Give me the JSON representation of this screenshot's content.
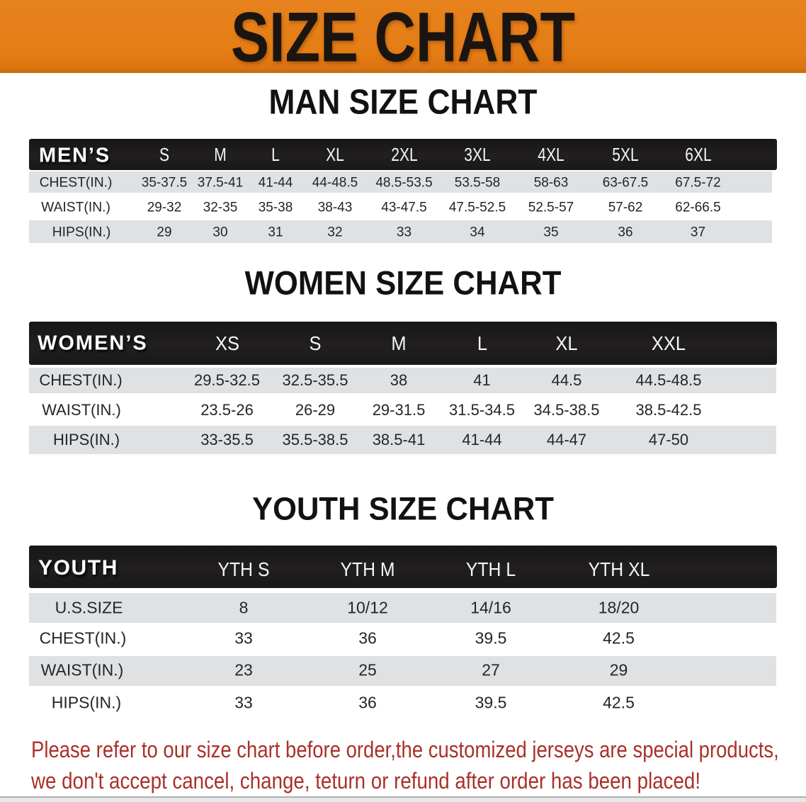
{
  "banner": {
    "title": "SIZE CHART",
    "background_color": "#e67e18",
    "text_color": "#1b1511"
  },
  "sections": [
    {
      "id": "men",
      "heading": "MAN SIZE CHART",
      "table": {
        "corner_label": "MEN’S",
        "columns": [
          "S",
          "M",
          "L",
          "XL",
          "2XL",
          "3XL",
          "4XL",
          "5XL",
          "6XL"
        ],
        "rows": [
          {
            "label": "CHEST(IN.)",
            "values": [
              "35-37.5",
              "37.5-41",
              "41-44",
              "44-48.5",
              "48.5-53.5",
              "53.5-58",
              "58-63",
              "63-67.5",
              "67.5-72"
            ]
          },
          {
            "label": "WAIST(IN.)",
            "values": [
              "29-32",
              "32-35",
              "35-38",
              "38-43",
              "43-47.5",
              "47.5-52.5",
              "52.5-57",
              "57-62",
              "62-66.5"
            ]
          },
          {
            "label": "HIPS(IN.)",
            "values": [
              "29",
              "30",
              "31",
              "32",
              "33",
              "34",
              "35",
              "36",
              "37"
            ]
          }
        ]
      }
    },
    {
      "id": "women",
      "heading": "WOMEN SIZE CHART",
      "table": {
        "corner_label": "WOMEN’S",
        "columns": [
          "XS",
          "S",
          "M",
          "L",
          "XL",
          "XXL"
        ],
        "rows": [
          {
            "label": "CHEST(IN.)",
            "values": [
              "29.5-32.5",
              "32.5-35.5",
              "38",
              "41",
              "44.5",
              "44.5-48.5"
            ]
          },
          {
            "label": "WAIST(IN.)",
            "values": [
              "23.5-26",
              "26-29",
              "29-31.5",
              "31.5-34.5",
              "34.5-38.5",
              "38.5-42.5"
            ]
          },
          {
            "label": "HIPS(IN.)",
            "values": [
              "33-35.5",
              "35.5-38.5",
              "38.5-41",
              "41-44",
              "44-47",
              "47-50"
            ]
          }
        ]
      }
    },
    {
      "id": "youth",
      "heading": "YOUTH SIZE CHART",
      "table": {
        "corner_label": "YOUTH",
        "columns": [
          "YTH S",
          "YTH M",
          "YTH L",
          "YTH XL"
        ],
        "rows": [
          {
            "label": "U.S.SIZE",
            "values": [
              "8",
              "10/12",
              "14/16",
              "18/20"
            ]
          },
          {
            "label": "CHEST(IN.)",
            "values": [
              "33",
              "36",
              "39.5",
              "42.5"
            ]
          },
          {
            "label": "WAIST(IN.)",
            "values": [
              "23",
              "25",
              "27",
              "29"
            ]
          },
          {
            "label": "HIPS(IN.)",
            "values": [
              "33",
              "36",
              "39.5",
              "42.5"
            ]
          }
        ]
      }
    }
  ],
  "footnote": {
    "line1": "Please refer to our size chart before order,the customized jerseys are special products,",
    "line2": "we don't accept cancel, change, teturn or refund after order has been placed!",
    "color": "#a93129"
  },
  "style_colors": {
    "table_header_bg": "#1d1b1b",
    "table_header_text": "#ffffff",
    "row_shaded_bg": "#dfe1e2",
    "row_plain_bg": "#ffffff",
    "body_text": "#232527"
  }
}
